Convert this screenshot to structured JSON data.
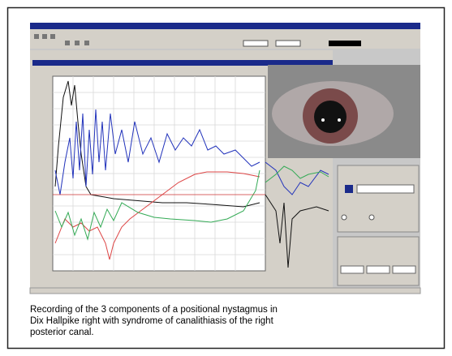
{
  "caption": {
    "lines": [
      "Recording of the 3 components of a positional nystagmus in",
      "Dix Hallpike right with syndrome of canalithiasis of the right",
      "posterior canal."
    ]
  }
}
